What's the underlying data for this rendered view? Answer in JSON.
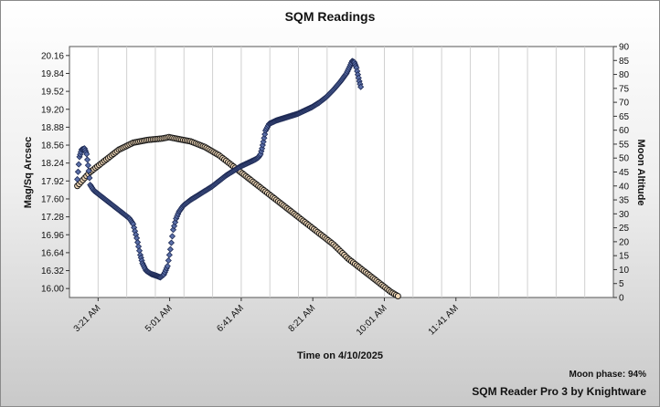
{
  "window": {
    "title": "SQM Readings",
    "moon_phase_label": "Moon phase: 94%",
    "footer": "SQM Reader Pro 3 by Knightware"
  },
  "colors": {
    "sqm_marker": "#5a6fa8",
    "sqm_edge": "#1e2a55",
    "moon_marker": "#f2d9b8",
    "moon_edge": "#1a1a1a",
    "plot_bg": "#ffffff",
    "grid": "#d0d0d0"
  },
  "chart_data": {
    "type": "scatter",
    "title": "SQM Readings",
    "xlabel": "Time on 4/10/2025",
    "ylabel": "Mag/Sq Arcsec",
    "y2label": "Moon Altitude",
    "x_ticks": [
      "3:21 AM",
      "5:01 AM",
      "6:41 AM",
      "8:21 AM",
      "10:01 AM",
      "11:41 AM"
    ],
    "x_unit": "minutes after midnight",
    "x_tick_values": [
      201,
      301,
      401,
      501,
      601,
      701
    ],
    "xlim": [
      161,
      921
    ],
    "ylim": [
      15.84,
      20.32
    ],
    "y_ticks": [
      16.0,
      16.32,
      16.64,
      16.96,
      17.28,
      17.6,
      17.92,
      18.24,
      18.56,
      18.88,
      19.2,
      19.52,
      19.84,
      20.16
    ],
    "y2lim": [
      0,
      90
    ],
    "y2_ticks": [
      0,
      5,
      10,
      15,
      20,
      25,
      30,
      35,
      40,
      45,
      50,
      55,
      60,
      65,
      70,
      75,
      80,
      85,
      90
    ],
    "grid": "vertical",
    "series": [
      {
        "name": "",
        "axis": "left",
        "marker": "diamond",
        "points": [
          [
            172,
            17.95
          ],
          [
            175,
            18.35
          ],
          [
            178,
            18.48
          ],
          [
            182,
            18.5
          ],
          [
            185,
            18.4
          ],
          [
            188,
            18.1
          ],
          [
            190,
            17.85
          ],
          [
            195,
            17.75
          ],
          [
            205,
            17.65
          ],
          [
            215,
            17.55
          ],
          [
            225,
            17.45
          ],
          [
            235,
            17.35
          ],
          [
            245,
            17.25
          ],
          [
            250,
            17.15
          ],
          [
            255,
            16.9
          ],
          [
            260,
            16.6
          ],
          [
            263,
            16.45
          ],
          [
            268,
            16.32
          ],
          [
            275,
            16.26
          ],
          [
            282,
            16.23
          ],
          [
            288,
            16.2
          ],
          [
            293,
            16.25
          ],
          [
            298,
            16.4
          ],
          [
            302,
            16.7
          ],
          [
            306,
            17.05
          ],
          [
            310,
            17.25
          ],
          [
            314,
            17.37
          ],
          [
            320,
            17.48
          ],
          [
            330,
            17.58
          ],
          [
            340,
            17.66
          ],
          [
            350,
            17.74
          ],
          [
            360,
            17.82
          ],
          [
            370,
            17.92
          ],
          [
            380,
            18.02
          ],
          [
            390,
            18.1
          ],
          [
            400,
            18.18
          ],
          [
            410,
            18.24
          ],
          [
            420,
            18.3
          ],
          [
            425,
            18.34
          ],
          [
            428,
            18.4
          ],
          [
            430,
            18.5
          ],
          [
            432,
            18.62
          ],
          [
            435,
            18.82
          ],
          [
            440,
            18.94
          ],
          [
            450,
            19.0
          ],
          [
            460,
            19.04
          ],
          [
            470,
            19.08
          ],
          [
            480,
            19.12
          ],
          [
            490,
            19.18
          ],
          [
            500,
            19.24
          ],
          [
            510,
            19.32
          ],
          [
            520,
            19.42
          ],
          [
            530,
            19.55
          ],
          [
            540,
            19.7
          ],
          [
            548,
            19.84
          ],
          [
            553,
            19.97
          ],
          [
            556,
            20.06
          ],
          [
            559,
            20.04
          ],
          [
            562,
            19.94
          ],
          [
            564,
            19.82
          ],
          [
            566,
            19.7
          ],
          [
            568,
            19.6
          ]
        ]
      },
      {
        "name": "",
        "axis": "right",
        "marker": "circle",
        "points": [
          [
            172,
            40
          ],
          [
            190,
            45
          ],
          [
            210,
            49
          ],
          [
            230,
            53
          ],
          [
            250,
            55.5
          ],
          [
            270,
            56.5
          ],
          [
            290,
            57
          ],
          [
            300,
            57.5
          ],
          [
            310,
            57
          ],
          [
            330,
            56
          ],
          [
            350,
            54
          ],
          [
            370,
            51
          ],
          [
            390,
            47
          ],
          [
            410,
            43
          ],
          [
            430,
            39
          ],
          [
            450,
            35
          ],
          [
            470,
            31
          ],
          [
            490,
            27
          ],
          [
            510,
            23
          ],
          [
            530,
            19
          ],
          [
            550,
            14
          ],
          [
            570,
            10
          ],
          [
            590,
            6
          ],
          [
            610,
            2
          ],
          [
            620,
            0.5
          ]
        ]
      }
    ]
  }
}
